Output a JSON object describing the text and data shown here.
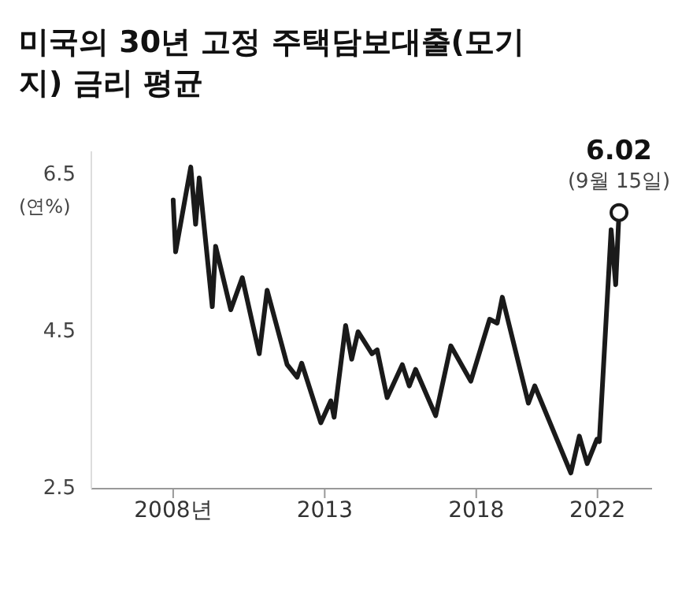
{
  "chart_data": {
    "type": "line",
    "title": "미국의 30년 고정 주택담보대출(모기지) 금리 평균",
    "ylabel": "(연%)",
    "x": [
      2008.0,
      2008.08,
      2008.58,
      2008.74,
      2008.86,
      2009.29,
      2009.4,
      2009.9,
      2010.28,
      2010.84,
      2011.1,
      2011.76,
      2012.09,
      2012.24,
      2012.87,
      2013.2,
      2013.31,
      2013.69,
      2013.89,
      2014.1,
      2014.56,
      2014.73,
      2015.06,
      2015.56,
      2015.79,
      2016.0,
      2016.66,
      2017.16,
      2017.82,
      2018.44,
      2018.69,
      2018.86,
      2019.72,
      2019.93,
      2021.12,
      2021.4,
      2021.66,
      2021.98,
      2022.06,
      2022.45,
      2022.6,
      2022.71
    ],
    "series": [
      {
        "color": "#1a1a1a",
        "values": [
          6.18,
          5.52,
          6.6,
          5.87,
          6.46,
          4.82,
          5.59,
          4.78,
          5.19,
          4.22,
          5.03,
          4.08,
          3.92,
          4.1,
          3.34,
          3.62,
          3.41,
          4.58,
          4.15,
          4.5,
          4.22,
          4.27,
          3.66,
          4.08,
          3.81,
          4.02,
          3.43,
          4.32,
          3.87,
          4.66,
          4.61,
          4.94,
          3.59,
          3.81,
          2.7,
          3.17,
          2.82,
          3.13,
          3.1,
          5.8,
          5.1,
          6.02
        ]
      }
    ],
    "xlim": [
      2005.3,
      2023.8
    ],
    "xticks": [
      {
        "value": 2008,
        "label": "2008년"
      },
      2013,
      2018,
      2022
    ],
    "ylim": [
      2.5,
      6.8
    ],
    "yticks": [
      2.5,
      4.5,
      6.5
    ],
    "annotations": [
      {
        "text": "6.02",
        "x": 2022.71,
        "y": 6.02
      },
      "(9월 15일)"
    ]
  }
}
